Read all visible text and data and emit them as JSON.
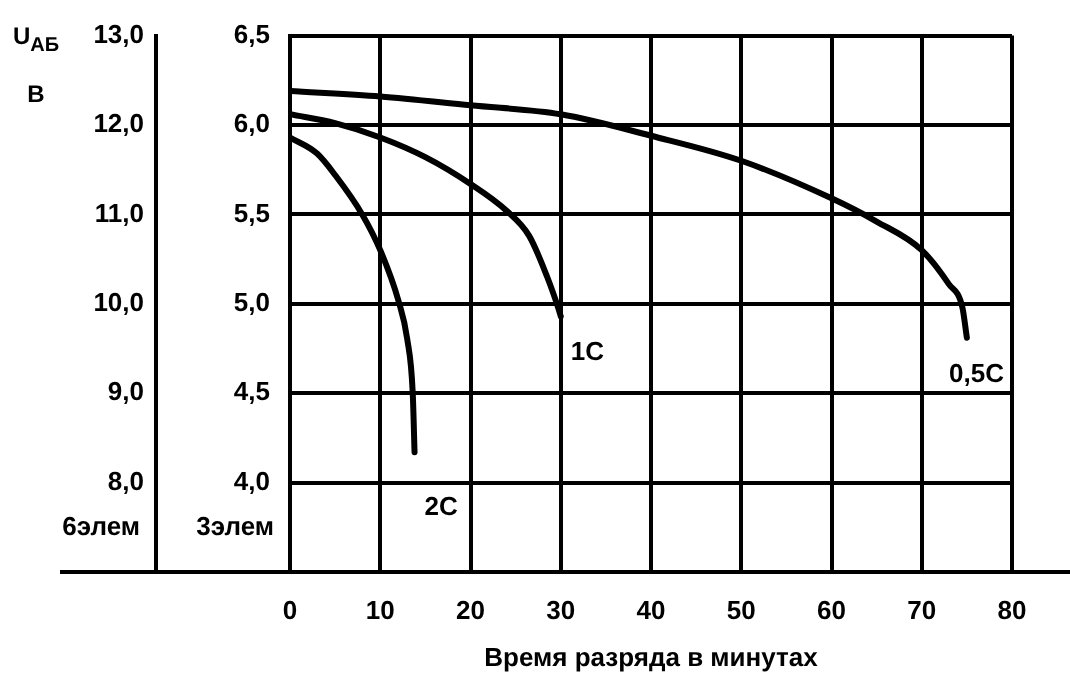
{
  "chart_data": {
    "type": "line",
    "title": "U$_{АБ}$ В",
    "xlabel": "Время разряда в минутах",
    "ylabel": "3элем",
    "y2label": "6элем",
    "xlim": [
      0,
      80
    ],
    "xticks": [
      0,
      10,
      20,
      30,
      40,
      50,
      60,
      70,
      80
    ],
    "ylim": [
      3.5,
      6.5
    ],
    "yticks": [
      {
        "value": 4,
        "label": "4,0"
      },
      {
        "value": 4.5,
        "label": "4,5"
      },
      {
        "value": 5,
        "label": "5,0"
      },
      {
        "value": 5.5,
        "label": "5,5"
      },
      {
        "value": 6,
        "label": "6,0"
      },
      {
        "value": 6.5,
        "label": "6,5"
      }
    ],
    "y2lim": [
      7,
      13
    ],
    "y2ticks": [
      {
        "value": 8,
        "label": "8,0"
      },
      {
        "value": 9,
        "label": "9,0"
      },
      {
        "value": 10,
        "label": "10,0"
      },
      {
        "value": 11,
        "label": "11,0"
      },
      {
        "value": 12,
        "label": "12,0"
      },
      {
        "value": 13,
        "label": "13,0"
      }
    ],
    "grid": true,
    "legend": false,
    "marker": "none",
    "line_style": "solid",
    "series": [
      {
        "name": "2C",
        "color": "#000000",
        "x": [
          0,
          3,
          5,
          8,
          10,
          12,
          13,
          13.6,
          13.8
        ],
        "values": [
          5.93,
          5.84,
          5.72,
          5.5,
          5.3,
          5.02,
          4.8,
          4.5,
          4.17
        ]
      },
      {
        "name": "1C",
        "color": "#000000",
        "x": [
          0,
          5,
          10,
          15,
          20,
          24,
          26.5,
          28.5,
          29.7,
          30
        ],
        "values": [
          6.06,
          6.01,
          5.93,
          5.82,
          5.67,
          5.52,
          5.38,
          5.15,
          4.98,
          4.93
        ]
      },
      {
        "name": "0,5C",
        "color": "#000000",
        "x": [
          0,
          10,
          20,
          30,
          40,
          50,
          60,
          65,
          70,
          73,
          74.5,
          75
        ],
        "values": [
          6.19,
          6.16,
          6.11,
          6.06,
          5.94,
          5.8,
          5.59,
          5.46,
          5.3,
          5.11,
          4.98,
          4.81
        ]
      }
    ]
  }
}
